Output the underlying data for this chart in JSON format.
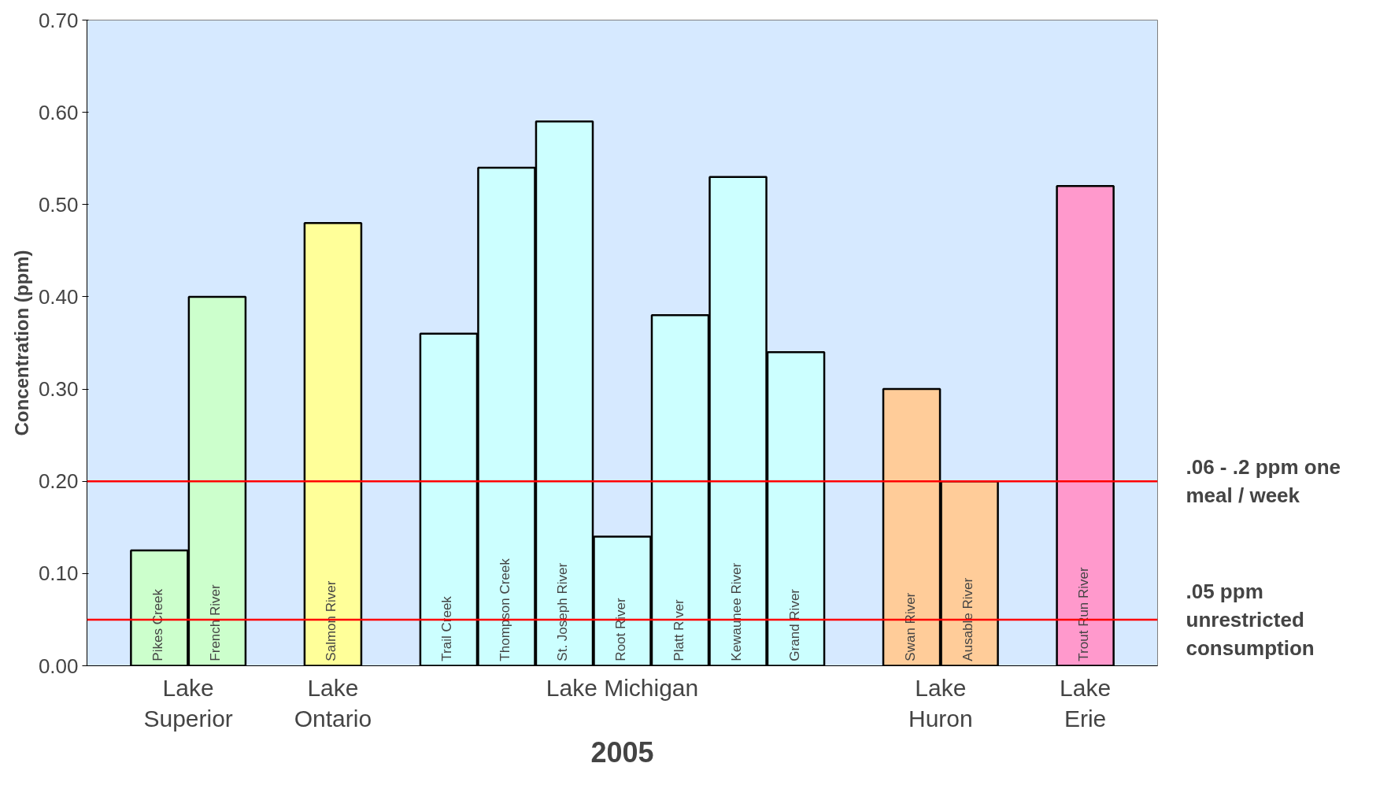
{
  "chart_data": {
    "type": "bar",
    "xlabel": "2005",
    "ylabel": "Concentration (ppm)",
    "categories": [
      "Pikes Creek",
      "French River",
      null,
      "Salmon River",
      null,
      "Trail Creek",
      "Thompson Creek",
      "St. Joseph River",
      "Root River",
      "Platt River",
      "Kewaunee River",
      "Grand River",
      null,
      "Swan River",
      "Ausable River",
      null,
      "Trout Run River"
    ],
    "values": [
      0.125,
      0.4,
      null,
      0.48,
      null,
      0.36,
      0.54,
      0.59,
      0.14,
      0.38,
      0.53,
      0.34,
      null,
      0.3,
      0.2,
      null,
      0.52
    ],
    "colors": [
      "#ccffcc",
      "#ccffcc",
      null,
      "#ffff99",
      null,
      "#ccffff",
      "#ccffff",
      "#ccffff",
      "#ccffff",
      "#ccffff",
      "#ccffff",
      "#ccffff",
      null,
      "#ffcc99",
      "#ffcc99",
      null,
      "#ff99cc"
    ],
    "ylim": [
      0,
      0.7
    ],
    "yticks": [
      {
        "value": 0,
        "label": "0.00"
      },
      {
        "value": 0.1,
        "label": "0.10"
      },
      {
        "value": 0.2,
        "label": "0.20"
      },
      {
        "value": 0.3,
        "label": "0.30"
      },
      {
        "value": 0.4,
        "label": "0.40"
      },
      {
        "value": 0.5,
        "label": "0.50"
      },
      {
        "value": 0.6,
        "label": "0.60"
      },
      {
        "value": 0.7,
        "label": "0.70"
      }
    ],
    "ref_lines": [
      {
        "axis": "y",
        "value": 0.2,
        "label": ".06 - .2 ppm one meal / week",
        "color": "#ff0000"
      },
      {
        "axis": "y",
        "value": 0.05,
        "label": ".05 ppm unrestricted consumption",
        "color": "#ff0000"
      }
    ],
    "annotations": [
      "Lake\nSuperior",
      "Lake\nOntario",
      "Lake Michigan",
      "Lake\nHuron",
      "Lake\nErie"
    ],
    "grid": false,
    "legend": false
  }
}
